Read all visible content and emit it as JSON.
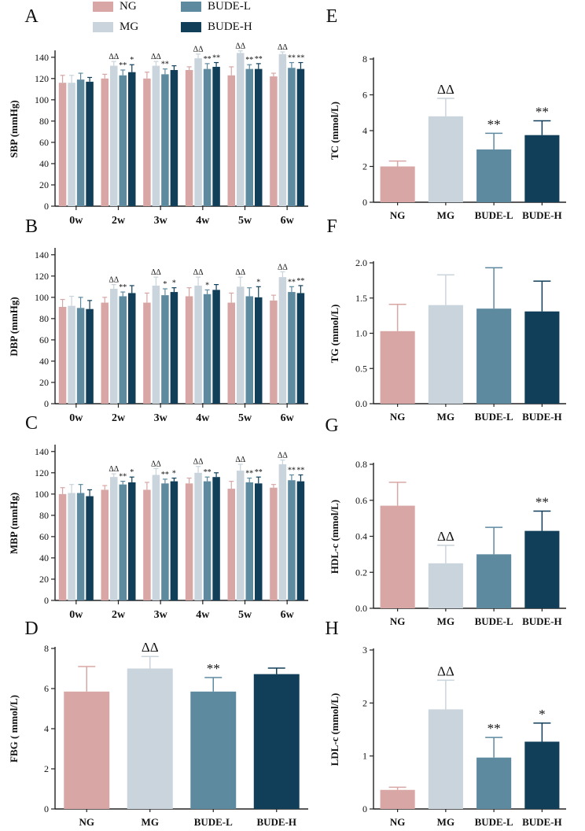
{
  "legend": [
    {
      "name": "NG",
      "color": "#d8a7a5"
    },
    {
      "name": "MG",
      "color": "#c9d4dc"
    },
    {
      "name": "BUDE-L",
      "color": "#5e8aa0"
    },
    {
      "name": "BUDE-H",
      "color": "#113f5a"
    }
  ],
  "chart_data": [
    {
      "panel": "A",
      "type": "bar",
      "title": "",
      "xlabel": "",
      "ylabel": "SBP (mmHg)",
      "ylim": [
        0,
        145
      ],
      "yticks": [
        0,
        20,
        40,
        60,
        80,
        100,
        120,
        140
      ],
      "categories": [
        "0w",
        "2w",
        "3w",
        "4w",
        "5w",
        "6w"
      ],
      "series": [
        {
          "name": "NG",
          "values": [
            116,
            120,
            120,
            128,
            123,
            122
          ],
          "errors": [
            7,
            4,
            6,
            3,
            8,
            3
          ],
          "marks": [
            "",
            "",
            "",
            "",
            "",
            ""
          ]
        },
        {
          "name": "MG",
          "values": [
            116,
            132,
            132,
            139,
            144,
            143
          ],
          "errors": [
            7,
            4,
            4,
            4,
            2,
            2
          ],
          "marks": [
            "",
            "ΔΔ",
            "ΔΔ",
            "ΔΔ",
            "ΔΔ",
            "ΔΔ"
          ]
        },
        {
          "name": "BUDE-L",
          "values": [
            119,
            123,
            124,
            129,
            129,
            130
          ],
          "errors": [
            6,
            5,
            5,
            5,
            4,
            5
          ],
          "marks": [
            "",
            "**",
            "**",
            "**",
            "**",
            "**"
          ]
        },
        {
          "name": "BUDE-H",
          "values": [
            117,
            126,
            128,
            131,
            129,
            129
          ],
          "errors": [
            4,
            7,
            4,
            4,
            5,
            6
          ],
          "marks": [
            "",
            "*",
            "",
            "**",
            "**",
            "**"
          ]
        }
      ]
    },
    {
      "panel": "B",
      "type": "bar",
      "title": "",
      "xlabel": "",
      "ylabel": "DBP (mmHg)",
      "ylim": [
        0,
        145
      ],
      "yticks": [
        0,
        20,
        40,
        60,
        80,
        100,
        120,
        140
      ],
      "categories": [
        "0w",
        "2w",
        "3w",
        "4w",
        "5w",
        "6w"
      ],
      "series": [
        {
          "name": "NG",
          "values": [
            91,
            95,
            95,
            101,
            95,
            97
          ],
          "errors": [
            7,
            5,
            9,
            8,
            9,
            5
          ],
          "marks": [
            "",
            "",
            "",
            "",
            "",
            ""
          ]
        },
        {
          "name": "MG",
          "values": [
            92,
            108,
            111,
            111,
            110,
            119
          ],
          "errors": [
            9,
            4,
            8,
            8,
            9,
            5
          ],
          "marks": [
            "",
            "ΔΔ",
            "ΔΔ",
            "ΔΔ",
            "ΔΔ",
            "ΔΔ"
          ]
        },
        {
          "name": "BUDE-L",
          "values": [
            90,
            101,
            102,
            103,
            101,
            105
          ],
          "errors": [
            10,
            4,
            6,
            4,
            8,
            5
          ],
          "marks": [
            "",
            "**",
            "*",
            "*",
            "",
            "**"
          ]
        },
        {
          "name": "BUDE-H",
          "values": [
            89,
            104,
            105,
            107,
            100,
            104
          ],
          "errors": [
            8,
            7,
            4,
            5,
            10,
            7
          ],
          "marks": [
            "",
            "",
            "*",
            "",
            "*",
            "**"
          ]
        }
      ]
    },
    {
      "panel": "C",
      "type": "bar",
      "title": "",
      "xlabel": "",
      "ylabel": "MBP (mmHg)",
      "ylim": [
        0,
        145
      ],
      "yticks": [
        0,
        20,
        40,
        60,
        80,
        100,
        120,
        140
      ],
      "categories": [
        "0w",
        "2w",
        "3w",
        "4w",
        "5w",
        "6w"
      ],
      "series": [
        {
          "name": "NG",
          "values": [
            100,
            104,
            104,
            110,
            105,
            106
          ],
          "errors": [
            6,
            4,
            7,
            5,
            7,
            3
          ],
          "marks": [
            "",
            "",
            "",
            "",
            "",
            ""
          ]
        },
        {
          "name": "MG",
          "values": [
            101,
            116,
            118,
            120,
            122,
            128
          ],
          "errors": [
            8,
            3,
            6,
            6,
            6,
            4
          ],
          "marks": [
            "",
            "ΔΔ",
            "ΔΔ",
            "ΔΔ",
            "ΔΔ",
            "ΔΔ"
          ]
        },
        {
          "name": "BUDE-L",
          "values": [
            101,
            109,
            110,
            112,
            111,
            113
          ],
          "errors": [
            8,
            3,
            4,
            4,
            4,
            5
          ],
          "marks": [
            "",
            "**",
            "**",
            "**",
            "**",
            "**"
          ]
        },
        {
          "name": "BUDE-H",
          "values": [
            98,
            111,
            112,
            116,
            110,
            112
          ],
          "errors": [
            6,
            5,
            3,
            4,
            6,
            6
          ],
          "marks": [
            "",
            "*",
            "*",
            "",
            "**",
            "**"
          ]
        }
      ]
    },
    {
      "panel": "D",
      "type": "bar",
      "title": "",
      "xlabel": "",
      "ylabel": "FBG ( mmol/L)",
      "ylim": [
        0,
        8
      ],
      "yticks": [
        0,
        2,
        4,
        6,
        8
      ],
      "categories": [
        "NG",
        "MG",
        "BUDE-L",
        "BUDE-H"
      ],
      "values": [
        5.85,
        7.0,
        5.85,
        6.72
      ],
      "errors": [
        1.25,
        0.6,
        0.7,
        0.3
      ],
      "marks": [
        "",
        "ΔΔ",
        "**",
        ""
      ],
      "colors": [
        "#d8a7a5",
        "#c9d4dc",
        "#5e8aa0",
        "#113f5a"
      ]
    },
    {
      "panel": "E",
      "type": "bar",
      "title": "",
      "xlabel": "",
      "ylabel": "TC (mmol/L)",
      "ylim": [
        0,
        8
      ],
      "yticks": [
        0,
        2,
        4,
        6,
        8
      ],
      "categories": [
        "NG",
        "MG",
        "BUDE-L",
        "BUDE-H"
      ],
      "values": [
        2.0,
        4.8,
        2.95,
        3.75
      ],
      "errors": [
        0.3,
        1.0,
        0.9,
        0.8
      ],
      "marks": [
        "",
        "ΔΔ",
        "**",
        "**"
      ],
      "colors": [
        "#d8a7a5",
        "#c9d4dc",
        "#5e8aa0",
        "#113f5a"
      ]
    },
    {
      "panel": "F",
      "type": "bar",
      "title": "",
      "xlabel": "",
      "ylabel": "TG (mmol/L)",
      "ylim": [
        0,
        2.0
      ],
      "yticks": [
        "0.0",
        "0.5",
        "1.0",
        "1.5",
        "2.0"
      ],
      "categories": [
        "NG",
        "MG",
        "BUDE-L",
        "BUDE-H"
      ],
      "values": [
        1.03,
        1.4,
        1.35,
        1.31
      ],
      "errors": [
        0.38,
        0.43,
        0.58,
        0.43
      ],
      "marks": [
        "",
        "",
        "",
        ""
      ],
      "colors": [
        "#d8a7a5",
        "#c9d4dc",
        "#5e8aa0",
        "#113f5a"
      ]
    },
    {
      "panel": "G",
      "type": "bar",
      "title": "",
      "xlabel": "",
      "ylabel": "HDL-c (mmol/L)",
      "ylim": [
        0,
        0.8
      ],
      "yticks": [
        "0.0",
        "0.2",
        "0.4",
        "0.6",
        "0.8"
      ],
      "categories": [
        "NG",
        "MG",
        "BUDE-L",
        "BUDE-H"
      ],
      "values": [
        0.57,
        0.25,
        0.3,
        0.43
      ],
      "errors": [
        0.13,
        0.1,
        0.15,
        0.11
      ],
      "marks": [
        "",
        "ΔΔ",
        "",
        "**"
      ],
      "colors": [
        "#d8a7a5",
        "#c9d4dc",
        "#5e8aa0",
        "#113f5a"
      ]
    },
    {
      "panel": "H",
      "type": "bar",
      "title": "",
      "xlabel": "",
      "ylabel": "LDL-c (mmol/L)",
      "ylim": [
        0,
        3
      ],
      "yticks": [
        0,
        1,
        2,
        3
      ],
      "categories": [
        "NG",
        "MG",
        "BUDE-L",
        "BUDE-H"
      ],
      "values": [
        0.36,
        1.88,
        0.97,
        1.27
      ],
      "errors": [
        0.05,
        0.55,
        0.38,
        0.35
      ],
      "marks": [
        "",
        "ΔΔ",
        "**",
        "*"
      ],
      "colors": [
        "#d8a7a5",
        "#c9d4dc",
        "#5e8aa0",
        "#113f5a"
      ]
    }
  ]
}
